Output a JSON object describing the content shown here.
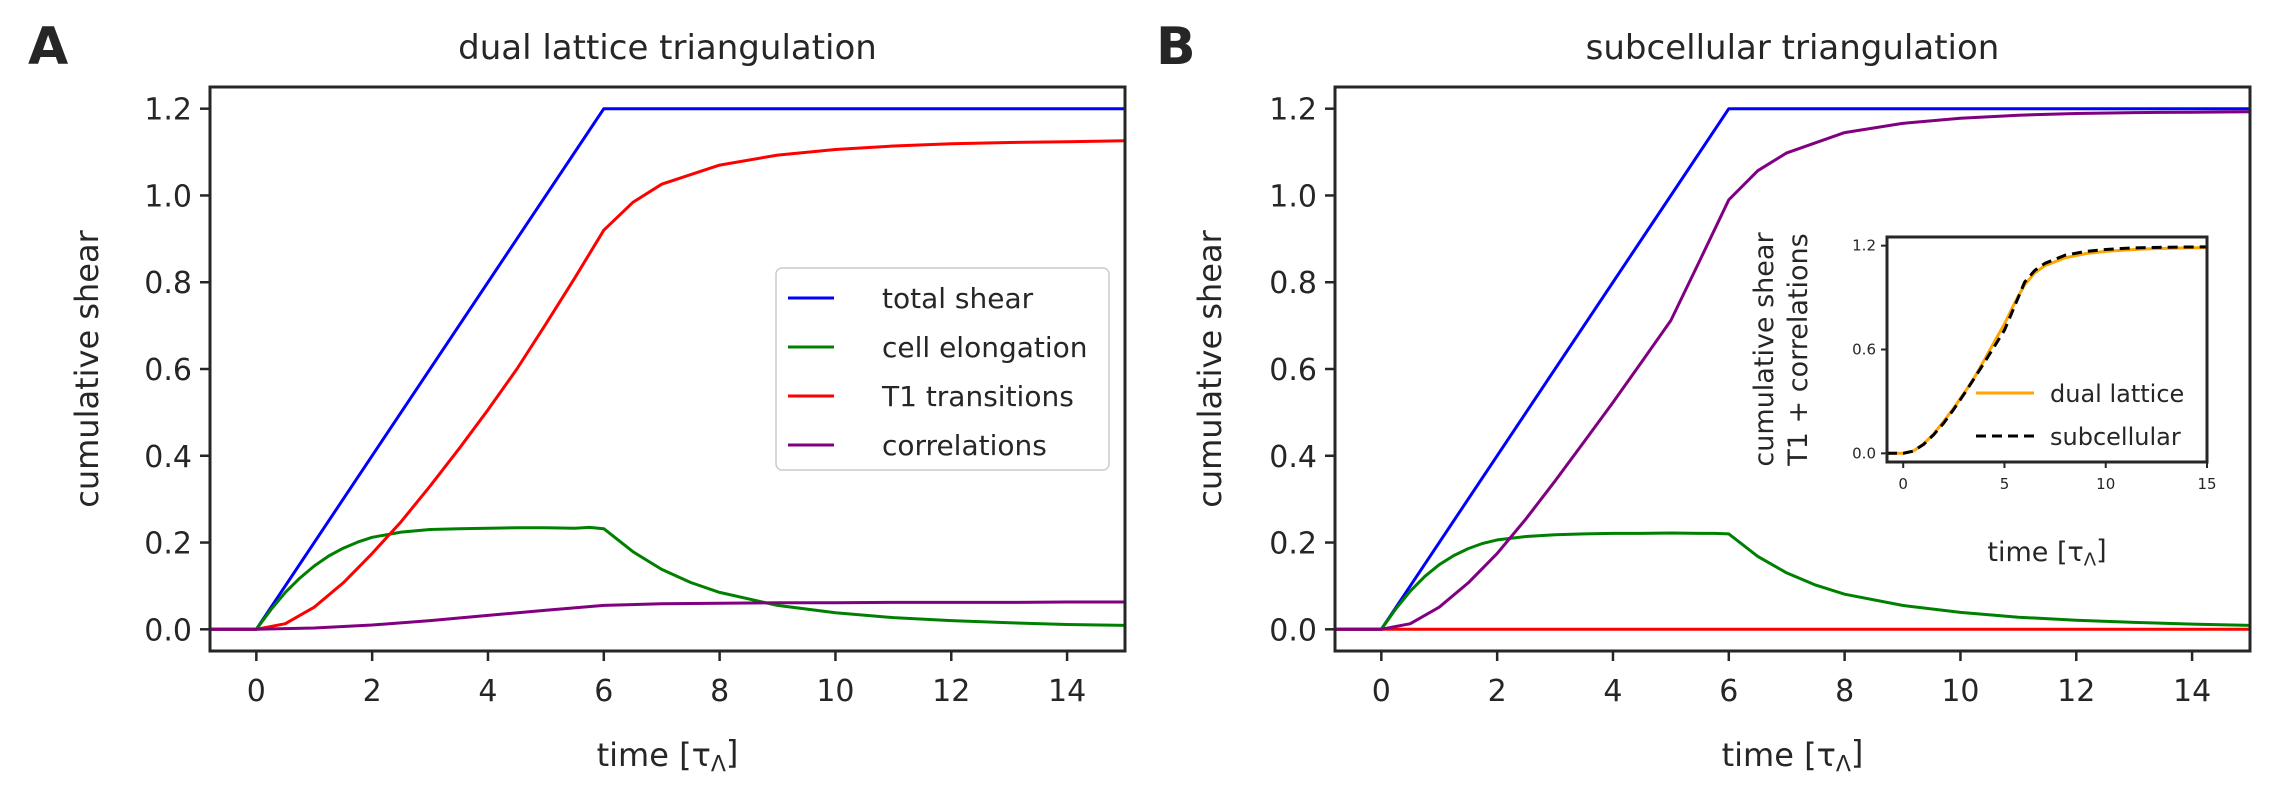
{
  "chart_data": [
    {
      "panel_letter": "A",
      "type": "line",
      "title": "dual lattice triangulation",
      "xlabel": "time [τ",
      "xlabel_sub": "Λ",
      "xlabel_close": "]",
      "ylabel": "cumulative shear",
      "xlim": [
        -0.8,
        15
      ],
      "ylim": [
        -0.05,
        1.25
      ],
      "xticks": [
        0,
        2,
        4,
        6,
        8,
        10,
        12,
        14
      ],
      "xtick_labels": [
        "0",
        "2",
        "4",
        "6",
        "8",
        "10",
        "12",
        "14"
      ],
      "yticks": [
        0.0,
        0.2,
        0.4,
        0.6,
        0.8,
        1.0,
        1.2
      ],
      "ytick_labels": [
        "0.0",
        "0.2",
        "0.4",
        "0.6",
        "0.8",
        "1.0",
        "1.2"
      ],
      "legend": {
        "position": "center-right"
      },
      "series": [
        {
          "name": "total shear",
          "color": "#0000ff",
          "x": [
            -0.8,
            0,
            6,
            15
          ],
          "y": [
            0,
            0,
            1.2,
            1.2
          ]
        },
        {
          "name": "cell elongation",
          "color": "#008000",
          "x": [
            -0.8,
            0,
            0.25,
            0.5,
            0.75,
            1,
            1.25,
            1.5,
            1.75,
            2,
            2.5,
            3,
            3.5,
            4,
            4.5,
            5,
            5.5,
            5.75,
            6,
            6.5,
            7,
            7.5,
            8,
            9,
            10,
            11,
            12,
            13,
            14,
            15
          ],
          "y": [
            0,
            0,
            0.045,
            0.085,
            0.118,
            0.146,
            0.169,
            0.187,
            0.201,
            0.212,
            0.224,
            0.23,
            0.232,
            0.233,
            0.234,
            0.234,
            0.233,
            0.235,
            0.232,
            0.179,
            0.138,
            0.108,
            0.085,
            0.055,
            0.038,
            0.027,
            0.02,
            0.015,
            0.011,
            0.009
          ]
        },
        {
          "name": "T1 transitions",
          "color": "#ff0000",
          "x": [
            -0.8,
            0,
            0.5,
            1,
            1.5,
            2,
            2.5,
            3,
            3.5,
            4,
            4.5,
            5,
            5.5,
            6,
            6.5,
            7,
            8,
            9,
            10,
            11,
            12,
            13,
            14,
            15
          ],
          "y": [
            0,
            0,
            0.013,
            0.051,
            0.107,
            0.175,
            0.248,
            0.33,
            0.416,
            0.506,
            0.6,
            0.704,
            0.81,
            0.92,
            0.984,
            1.026,
            1.07,
            1.093,
            1.106,
            1.114,
            1.119,
            1.122,
            1.124,
            1.126
          ]
        },
        {
          "name": "correlations",
          "color": "#800080",
          "x": [
            -0.8,
            0,
            1,
            2,
            3,
            4,
            5,
            6,
            7,
            8,
            9,
            10,
            11,
            12,
            13,
            14,
            15
          ],
          "y": [
            0,
            0,
            0.003,
            0.01,
            0.02,
            0.032,
            0.044,
            0.055,
            0.059,
            0.06,
            0.061,
            0.061,
            0.062,
            0.062,
            0.062,
            0.063,
            0.063
          ]
        }
      ]
    },
    {
      "panel_letter": "B",
      "type": "line",
      "title": "subcellular triangulation",
      "xlabel": "time [τ",
      "xlabel_sub": "Λ",
      "xlabel_close": "]",
      "ylabel": "cumulative shear",
      "xlim": [
        -0.8,
        15
      ],
      "ylim": [
        -0.05,
        1.25
      ],
      "xticks": [
        0,
        2,
        4,
        6,
        8,
        10,
        12,
        14
      ],
      "xtick_labels": [
        "0",
        "2",
        "4",
        "6",
        "8",
        "10",
        "12",
        "14"
      ],
      "yticks": [
        0.0,
        0.2,
        0.4,
        0.6,
        0.8,
        1.0,
        1.2
      ],
      "ytick_labels": [
        "0.0",
        "0.2",
        "0.4",
        "0.6",
        "0.8",
        "1.0",
        "1.2"
      ],
      "series": [
        {
          "name": "total shear",
          "color": "#0000ff",
          "x": [
            -0.8,
            0,
            6,
            15
          ],
          "y": [
            0,
            0,
            1.2,
            1.2
          ]
        },
        {
          "name": "cell elongation",
          "color": "#008000",
          "x": [
            -0.8,
            0,
            0.25,
            0.5,
            0.75,
            1,
            1.25,
            1.5,
            1.75,
            2,
            2.5,
            3,
            3.5,
            4,
            4.5,
            5,
            5.5,
            5.75,
            6,
            6.5,
            7,
            7.5,
            8,
            9,
            10,
            11,
            12,
            13,
            14,
            15
          ],
          "y": [
            0,
            0,
            0.047,
            0.088,
            0.122,
            0.149,
            0.17,
            0.186,
            0.198,
            0.206,
            0.214,
            0.218,
            0.22,
            0.221,
            0.221,
            0.222,
            0.221,
            0.221,
            0.22,
            0.168,
            0.13,
            0.102,
            0.081,
            0.055,
            0.039,
            0.028,
            0.021,
            0.016,
            0.012,
            0.009
          ]
        },
        {
          "name": "T1 transitions",
          "color": "#ff0000",
          "x": [
            -0.8,
            15
          ],
          "y": [
            0,
            0
          ]
        },
        {
          "name": "correlations",
          "color": "#800080",
          "x": [
            -0.8,
            0,
            0.5,
            1,
            1.5,
            2,
            2.5,
            3,
            3.5,
            4,
            4.5,
            5,
            5.5,
            6,
            6.5,
            7,
            8,
            9,
            10,
            11,
            12,
            13,
            14,
            15
          ],
          "y": [
            0,
            0,
            0.013,
            0.051,
            0.107,
            0.175,
            0.255,
            0.342,
            0.432,
            0.523,
            0.617,
            0.712,
            0.85,
            0.99,
            1.057,
            1.098,
            1.145,
            1.166,
            1.178,
            1.185,
            1.189,
            1.191,
            1.192,
            1.193
          ]
        }
      ]
    },
    {
      "panel_letter": "B-inset",
      "type": "line",
      "title": "",
      "xlabel": "time [τ",
      "xlabel_sub": "Λ",
      "xlabel_close": "]",
      "ylabel": "cumulative shear",
      "ylabel2": "T1 + correlations",
      "xlim": [
        -0.8,
        15
      ],
      "ylim": [
        -0.05,
        1.25
      ],
      "xticks": [
        0,
        5,
        10,
        15
      ],
      "xtick_labels": [
        "0",
        "5",
        "10",
        "15"
      ],
      "yticks": [
        0.0,
        0.6,
        1.2
      ],
      "ytick_labels": [
        "0.0",
        "0.6",
        "1.2"
      ],
      "legend": {
        "position": "lower-right"
      },
      "series": [
        {
          "name": "dual lattice",
          "color": "#ffa500",
          "dashed": false,
          "x": [
            -0.8,
            0,
            0.5,
            1,
            1.5,
            2,
            2.5,
            3,
            3.5,
            4,
            4.5,
            5,
            5.5,
            6,
            6.5,
            7,
            8,
            9,
            10,
            11,
            12,
            13,
            14,
            15
          ],
          "y": [
            0,
            0,
            0.013,
            0.054,
            0.112,
            0.185,
            0.262,
            0.347,
            0.435,
            0.538,
            0.644,
            0.748,
            0.868,
            0.975,
            1.043,
            1.085,
            1.13,
            1.154,
            1.167,
            1.175,
            1.181,
            1.184,
            1.187,
            1.189
          ]
        },
        {
          "name": "subcellular",
          "color": "#000000",
          "dashed": true,
          "x": [
            -0.8,
            0,
            0.5,
            1,
            1.5,
            2,
            2.5,
            3,
            3.5,
            4,
            4.5,
            5,
            5.5,
            6,
            6.5,
            7,
            8,
            9,
            10,
            11,
            12,
            13,
            14,
            15
          ],
          "y": [
            0,
            0,
            0.013,
            0.051,
            0.107,
            0.175,
            0.255,
            0.342,
            0.432,
            0.523,
            0.617,
            0.712,
            0.85,
            0.99,
            1.057,
            1.098,
            1.145,
            1.166,
            1.178,
            1.185,
            1.189,
            1.191,
            1.192,
            1.193
          ]
        }
      ]
    }
  ]
}
